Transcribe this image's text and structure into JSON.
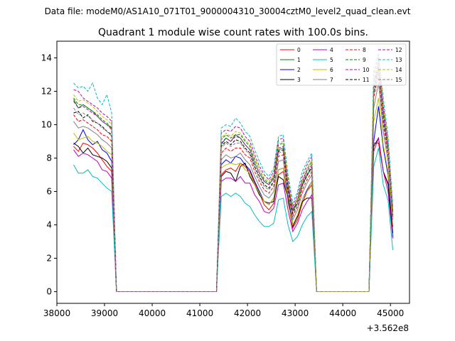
{
  "suptitle": "Data file: modeM0/AS1A10_071T01_9000004310_30004cztM0_level2_quad_clean.evt",
  "chart_data": {
    "type": "line",
    "title": "Quadrant 1 module wise count rates with 100.0s bins.",
    "xlabel": "",
    "ylabel": "",
    "x_offset_label": "+3.562e8",
    "xlim": [
      38000,
      45400
    ],
    "ylim": [
      -0.7,
      15.0
    ],
    "xticks": [
      38000,
      39000,
      40000,
      41000,
      42000,
      43000,
      44000,
      45000
    ],
    "xtick_labels": [
      "38000",
      "39000",
      "40000",
      "41000",
      "42000",
      "43000",
      "44000",
      "45000"
    ],
    "yticks": [
      0,
      2,
      4,
      6,
      8,
      10,
      12,
      14
    ],
    "ytick_labels": [
      "0",
      "2",
      "4",
      "6",
      "8",
      "10",
      "12",
      "14"
    ],
    "x": [
      38350,
      38450,
      38550,
      38650,
      38750,
      38850,
      38950,
      39050,
      39150,
      39250,
      39350,
      39450,
      39550,
      39650,
      39750,
      39850,
      39950,
      40050,
      40150,
      40250,
      40350,
      40450,
      40550,
      40650,
      40750,
      40850,
      40950,
      41050,
      41150,
      41250,
      41350,
      41450,
      41550,
      41650,
      41750,
      41850,
      41950,
      42050,
      42150,
      42250,
      42350,
      42450,
      42550,
      42650,
      42750,
      42850,
      42950,
      43050,
      43150,
      43250,
      43350,
      43450,
      43550,
      43650,
      43750,
      43850,
      43950,
      44050,
      44150,
      44250,
      44350,
      44450,
      44550,
      44650,
      44750,
      44850,
      44950,
      45050
    ],
    "series": [
      {
        "name": "0",
        "color": "#ff0000",
        "dash": "solid",
        "values": [
          8.7,
          8.4,
          8.9,
          8.8,
          8.6,
          8.3,
          7.9,
          7.5,
          7.2,
          0,
          0,
          0,
          0,
          0,
          0,
          0,
          0,
          0,
          0,
          0,
          0,
          0,
          0,
          0,
          0,
          0,
          0,
          0,
          0,
          0,
          0,
          7.0,
          7.3,
          7.4,
          7.2,
          7.7,
          7.5,
          7.2,
          6.5,
          5.9,
          5.2,
          4.9,
          5.3,
          7.0,
          7.2,
          5.4,
          3.8,
          4.3,
          5.3,
          6.0,
          6.4,
          0,
          0,
          0,
          0,
          0,
          0,
          0,
          0,
          0,
          0,
          0,
          0,
          8.9,
          8.9,
          7.2,
          6.4,
          3.9
        ]
      },
      {
        "name": "1",
        "color": "#008000",
        "dash": "solid",
        "values": [
          11.5,
          11.0,
          11.2,
          11.0,
          10.8,
          10.5,
          10.2,
          10.0,
          9.8,
          0,
          0,
          0,
          0,
          0,
          0,
          0,
          0,
          0,
          0,
          0,
          0,
          0,
          0,
          0,
          0,
          0,
          0,
          0,
          0,
          0,
          0,
          8.8,
          9.2,
          9.0,
          9.4,
          9.2,
          8.8,
          8.5,
          7.7,
          7.1,
          6.6,
          6.4,
          6.8,
          8.5,
          8.6,
          6.4,
          4.9,
          5.3,
          6.4,
          7.0,
          7.4,
          0,
          0,
          0,
          0,
          0,
          0,
          0,
          0,
          0,
          0,
          0,
          0,
          12.6,
          13.2,
          11.0,
          8.5,
          4.8
        ]
      },
      {
        "name": "2",
        "color": "#0000ff",
        "dash": "solid",
        "values": [
          8.8,
          9.1,
          9.7,
          9.1,
          8.8,
          9.0,
          8.5,
          8.3,
          7.8,
          0,
          0,
          0,
          0,
          0,
          0,
          0,
          0,
          0,
          0,
          0,
          0,
          0,
          0,
          0,
          0,
          0,
          0,
          0,
          0,
          0,
          0,
          7.6,
          7.9,
          7.7,
          8.1,
          8.0,
          7.6,
          7.3,
          6.6,
          6.0,
          5.4,
          5.2,
          5.6,
          7.3,
          7.4,
          5.6,
          4.0,
          4.5,
          5.5,
          6.1,
          6.6,
          0,
          0,
          0,
          0,
          0,
          0,
          0,
          0,
          0,
          0,
          0,
          0,
          9.0,
          11.1,
          8.6,
          7.0,
          3.5
        ]
      },
      {
        "name": "3",
        "color": "#000000",
        "dash": "solid",
        "values": [
          8.9,
          8.7,
          8.3,
          8.6,
          8.2,
          8.1,
          8.0,
          7.8,
          7.4,
          0,
          0,
          0,
          0,
          0,
          0,
          0,
          0,
          0,
          0,
          0,
          0,
          0,
          0,
          0,
          0,
          0,
          0,
          0,
          0,
          0,
          0,
          6.9,
          7.2,
          7.1,
          6.6,
          7.5,
          7.7,
          6.9,
          6.4,
          5.8,
          5.4,
          5.3,
          5.4,
          6.9,
          6.7,
          5.5,
          3.9,
          4.5,
          5.4,
          5.6,
          5.6,
          0,
          0,
          0,
          0,
          0,
          0,
          0,
          0,
          0,
          0,
          0,
          0,
          8.7,
          9.2,
          7.2,
          6.5,
          3.3
        ]
      },
      {
        "name": "4",
        "color": "#bf00bf",
        "dash": "solid",
        "values": [
          8.5,
          8.1,
          8.3,
          8.2,
          8.0,
          7.8,
          7.3,
          7.2,
          6.8,
          0,
          0,
          0,
          0,
          0,
          0,
          0,
          0,
          0,
          0,
          0,
          0,
          0,
          0,
          0,
          0,
          0,
          0,
          0,
          0,
          0,
          0,
          6.6,
          6.8,
          6.8,
          6.6,
          6.9,
          6.5,
          6.5,
          5.8,
          5.4,
          4.8,
          4.7,
          5.0,
          6.4,
          6.5,
          4.9,
          3.6,
          4.1,
          4.9,
          5.4,
          5.8,
          0,
          0,
          0,
          0,
          0,
          0,
          0,
          0,
          0,
          0,
          0,
          0,
          8.4,
          9.2,
          7.2,
          6.0,
          3.2
        ]
      },
      {
        "name": "5",
        "color": "#00bfbf",
        "dash": "solid",
        "values": [
          7.6,
          7.1,
          7.1,
          7.3,
          6.9,
          6.8,
          6.5,
          6.2,
          6.0,
          0,
          0,
          0,
          0,
          0,
          0,
          0,
          0,
          0,
          0,
          0,
          0,
          0,
          0,
          0,
          0,
          0,
          0,
          0,
          0,
          0,
          0,
          5.7,
          5.9,
          5.7,
          5.9,
          5.7,
          5.3,
          5.1,
          4.6,
          4.2,
          3.9,
          3.9,
          4.1,
          5.5,
          5.6,
          4.0,
          3.0,
          3.3,
          4.0,
          4.5,
          4.8,
          0,
          0,
          0,
          0,
          0,
          0,
          0,
          0,
          0,
          0,
          0,
          0,
          7.5,
          8.6,
          6.4,
          5.5,
          2.5
        ]
      },
      {
        "name": "6",
        "color": "#bfbf00",
        "dash": "solid",
        "values": [
          9.5,
          9.1,
          9.2,
          9.3,
          9.0,
          8.9,
          8.7,
          8.4,
          8.2,
          0,
          0,
          0,
          0,
          0,
          0,
          0,
          0,
          0,
          0,
          0,
          0,
          0,
          0,
          0,
          0,
          0,
          0,
          0,
          0,
          0,
          0,
          7.4,
          7.6,
          7.7,
          7.6,
          7.7,
          7.3,
          7.1,
          6.4,
          5.9,
          5.4,
          5.2,
          5.6,
          7.3,
          7.4,
          5.3,
          4.0,
          4.6,
          5.5,
          6.0,
          6.6,
          0,
          0,
          0,
          0,
          0,
          0,
          0,
          0,
          0,
          0,
          0,
          0,
          10.2,
          11.6,
          8.8,
          7.2,
          4.0
        ]
      },
      {
        "name": "7",
        "color": "#808080",
        "dash": "solid",
        "values": [
          10.2,
          9.8,
          9.9,
          9.8,
          9.6,
          9.4,
          9.1,
          8.9,
          8.6,
          0,
          0,
          0,
          0,
          0,
          0,
          0,
          0,
          0,
          0,
          0,
          0,
          0,
          0,
          0,
          0,
          0,
          0,
          0,
          0,
          0,
          0,
          7.9,
          8.2,
          8.0,
          8.1,
          8.3,
          7.9,
          7.6,
          6.9,
          6.3,
          5.8,
          5.6,
          6.0,
          7.8,
          7.9,
          5.8,
          4.3,
          4.9,
          5.9,
          6.5,
          7.0,
          0,
          0,
          0,
          0,
          0,
          0,
          0,
          0,
          0,
          0,
          0,
          0,
          11.0,
          12.5,
          9.6,
          7.8,
          4.3
        ]
      },
      {
        "name": "8",
        "color": "#ff0000",
        "dash": "dashed",
        "values": [
          10.6,
          10.2,
          10.3,
          10.1,
          9.9,
          9.7,
          9.4,
          9.3,
          9.0,
          0,
          0,
          0,
          0,
          0,
          0,
          0,
          0,
          0,
          0,
          0,
          0,
          0,
          0,
          0,
          0,
          0,
          0,
          0,
          0,
          0,
          0,
          8.3,
          8.6,
          8.4,
          8.6,
          8.6,
          8.2,
          8.0,
          7.2,
          6.6,
          6.1,
          5.9,
          6.3,
          8.1,
          8.2,
          6.0,
          4.5,
          5.1,
          6.1,
          6.7,
          7.2,
          0,
          0,
          0,
          0,
          0,
          0,
          0,
          0,
          0,
          0,
          0,
          0,
          11.6,
          13.0,
          10.0,
          8.1,
          4.5
        ]
      },
      {
        "name": "9",
        "color": "#008000",
        "dash": "dashed",
        "values": [
          11.6,
          11.2,
          11.2,
          11.0,
          10.8,
          10.6,
          10.3,
          10.1,
          9.8,
          0,
          0,
          0,
          0,
          0,
          0,
          0,
          0,
          0,
          0,
          0,
          0,
          0,
          0,
          0,
          0,
          0,
          0,
          0,
          0,
          0,
          0,
          9.1,
          9.4,
          9.2,
          9.4,
          9.4,
          9.0,
          8.7,
          7.9,
          7.3,
          6.7,
          6.5,
          6.9,
          8.8,
          8.9,
          6.5,
          4.9,
          5.6,
          6.6,
          7.3,
          7.8,
          0,
          0,
          0,
          0,
          0,
          0,
          0,
          0,
          0,
          0,
          0,
          0,
          12.5,
          13.8,
          10.8,
          8.7,
          4.9
        ]
      },
      {
        "name": "10",
        "color": "#bf00bf",
        "dash": "dashed",
        "values": [
          12.1,
          12.0,
          11.6,
          11.4,
          11.2,
          11.0,
          10.7,
          10.5,
          10.2,
          0,
          0,
          0,
          0,
          0,
          0,
          0,
          0,
          0,
          0,
          0,
          0,
          0,
          0,
          0,
          0,
          0,
          0,
          0,
          0,
          0,
          0,
          9.5,
          9.7,
          9.6,
          9.9,
          9.8,
          9.3,
          9.0,
          8.2,
          7.5,
          7.0,
          6.7,
          7.2,
          9.1,
          9.2,
          6.8,
          5.1,
          5.8,
          6.9,
          7.6,
          8.1,
          0,
          0,
          0,
          0,
          0,
          0,
          0,
          0,
          0,
          0,
          0,
          0,
          13.0,
          14.1,
          11.2,
          9.0,
          5.0
        ]
      },
      {
        "name": "11",
        "color": "#000000",
        "dash": "dashed",
        "values": [
          10.7,
          10.8,
          10.4,
          10.6,
          10.2,
          10.1,
          9.9,
          9.6,
          9.4,
          0,
          0,
          0,
          0,
          0,
          0,
          0,
          0,
          0,
          0,
          0,
          0,
          0,
          0,
          0,
          0,
          0,
          0,
          0,
          0,
          0,
          0,
          8.7,
          9.0,
          8.8,
          9.1,
          9.0,
          8.6,
          8.3,
          7.5,
          6.9,
          6.4,
          6.2,
          6.6,
          8.4,
          8.5,
          6.2,
          4.7,
          5.3,
          6.3,
          7.0,
          7.5,
          0,
          0,
          0,
          0,
          0,
          0,
          0,
          0,
          0,
          0,
          0,
          0,
          12.0,
          13.4,
          10.4,
          8.4,
          4.6
        ]
      },
      {
        "name": "12",
        "color": "#bf00bf",
        "dash": "dashed",
        "values": [
          11.4,
          11.0,
          11.1,
          10.9,
          10.7,
          10.5,
          10.2,
          10.0,
          9.7,
          0,
          0,
          0,
          0,
          0,
          0,
          0,
          0,
          0,
          0,
          0,
          0,
          0,
          0,
          0,
          0,
          0,
          0,
          0,
          0,
          0,
          0,
          8.9,
          9.2,
          9.0,
          9.3,
          9.2,
          8.8,
          8.5,
          7.7,
          7.1,
          6.6,
          6.4,
          6.8,
          8.6,
          8.7,
          6.4,
          4.8,
          5.5,
          6.5,
          7.2,
          7.6,
          0,
          0,
          0,
          0,
          0,
          0,
          0,
          0,
          0,
          0,
          0,
          0,
          12.4,
          13.6,
          10.6,
          8.6,
          4.8
        ]
      },
      {
        "name": "13",
        "color": "#00bfbf",
        "dash": "dashed",
        "values": [
          12.5,
          12.2,
          12.3,
          12.0,
          12.5,
          11.6,
          11.2,
          11.8,
          10.7,
          0,
          0,
          0,
          0,
          0,
          0,
          0,
          0,
          0,
          0,
          0,
          0,
          0,
          0,
          0,
          0,
          0,
          0,
          0,
          0,
          0,
          0,
          9.8,
          10.0,
          9.9,
          10.4,
          10.1,
          9.6,
          9.3,
          8.5,
          7.8,
          7.2,
          6.9,
          7.4,
          9.3,
          9.4,
          7.0,
          5.3,
          6.0,
          7.2,
          7.8,
          8.3,
          0,
          0,
          0,
          0,
          0,
          0,
          0,
          0,
          0,
          0,
          0,
          0,
          13.4,
          14.3,
          11.6,
          9.3,
          5.2
        ]
      },
      {
        "name": "14",
        "color": "#bfbf00",
        "dash": "dashed",
        "values": [
          11.8,
          11.4,
          11.5,
          11.3,
          11.1,
          10.8,
          10.5,
          10.3,
          10.0,
          0,
          0,
          0,
          0,
          0,
          0,
          0,
          0,
          0,
          0,
          0,
          0,
          0,
          0,
          0,
          0,
          0,
          0,
          0,
          0,
          0,
          0,
          9.2,
          9.5,
          9.3,
          9.6,
          9.5,
          9.1,
          8.8,
          8.0,
          7.3,
          6.8,
          6.6,
          7.0,
          8.9,
          9.0,
          6.6,
          5.0,
          5.6,
          6.7,
          7.4,
          7.9,
          0,
          0,
          0,
          0,
          0,
          0,
          0,
          0,
          0,
          0,
          0,
          0,
          12.8,
          13.9,
          11.0,
          8.8,
          4.9
        ]
      },
      {
        "name": "15",
        "color": "#808080",
        "dash": "dashed",
        "values": [
          11.0,
          10.6,
          10.7,
          10.5,
          10.3,
          10.1,
          9.8,
          9.6,
          9.3,
          0,
          0,
          0,
          0,
          0,
          0,
          0,
          0,
          0,
          0,
          0,
          0,
          0,
          0,
          0,
          0,
          0,
          0,
          0,
          0,
          0,
          0,
          8.6,
          8.9,
          8.7,
          8.9,
          8.9,
          8.5,
          8.2,
          7.4,
          6.8,
          6.3,
          6.1,
          6.5,
          8.3,
          8.4,
          6.2,
          4.6,
          5.3,
          6.3,
          6.9,
          7.4,
          0,
          0,
          0,
          0,
          0,
          0,
          0,
          0,
          0,
          0,
          0,
          0,
          11.8,
          13.2,
          10.2,
          8.3,
          4.6
        ]
      }
    ]
  }
}
